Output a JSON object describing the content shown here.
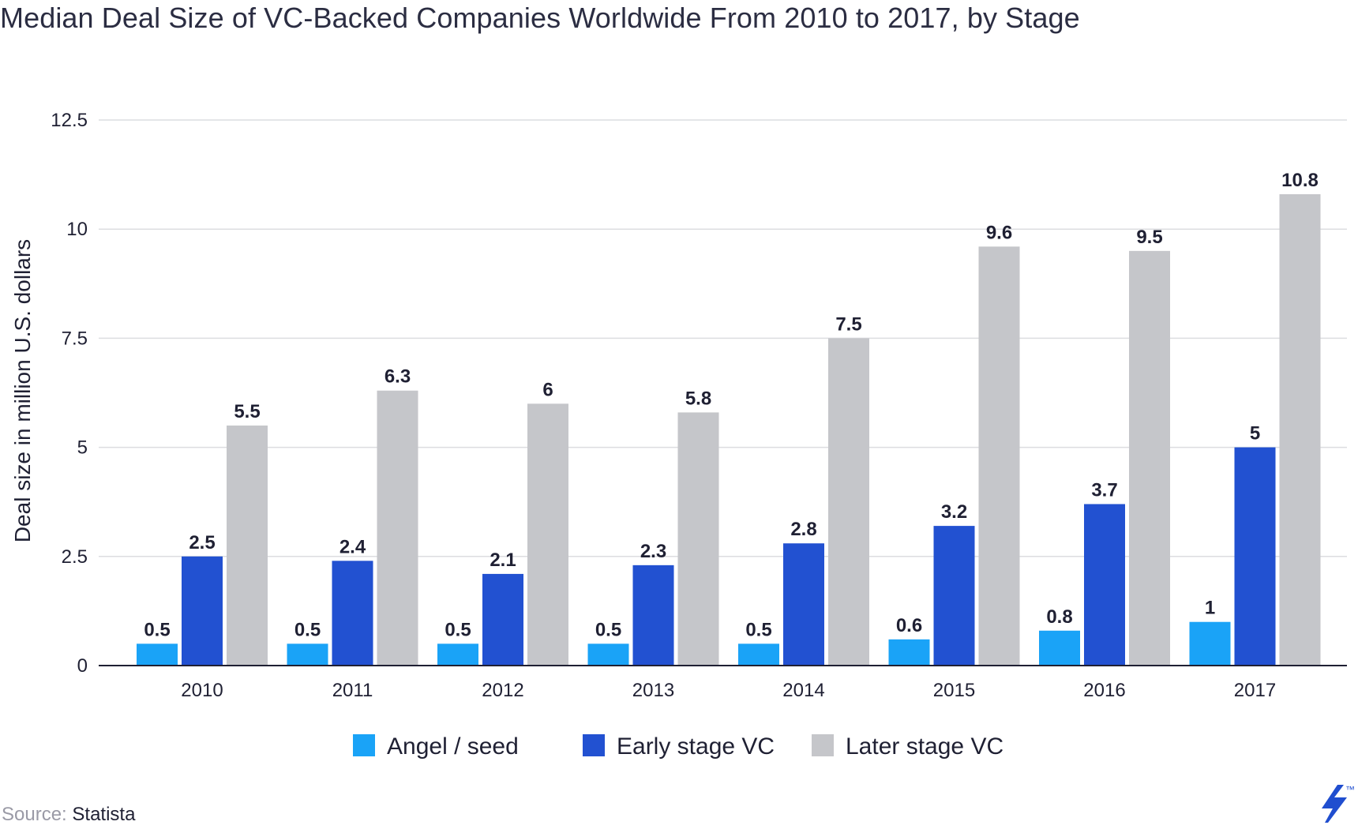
{
  "chart_data": {
    "type": "bar",
    "title": "Median Deal Size of VC-Backed Companies Worldwide From 2010 to 2017, by Stage",
    "xlabel": "",
    "ylabel": "Deal size in million U.S. dollars",
    "categories": [
      "2010",
      "2011",
      "2012",
      "2013",
      "2014",
      "2015",
      "2016",
      "2017"
    ],
    "series": [
      {
        "name": "Angel / seed",
        "color": "#1aa3f7",
        "values": [
          0.5,
          0.5,
          0.5,
          0.5,
          0.5,
          0.6,
          0.8,
          1
        ]
      },
      {
        "name": "Early stage VC",
        "color": "#2251d1",
        "values": [
          2.5,
          2.4,
          2.1,
          2.3,
          2.8,
          3.2,
          3.7,
          5
        ]
      },
      {
        "name": "Later stage VC",
        "color": "#c5c6ca",
        "values": [
          5.5,
          6.3,
          6,
          5.8,
          7.5,
          9.6,
          9.5,
          10.8
        ]
      }
    ],
    "ylim": [
      0,
      12.5
    ],
    "yticks": [
      0,
      2.5,
      5,
      7.5,
      10,
      12.5
    ],
    "ytick_labels": [
      "0",
      "2.5",
      "5",
      "7.5",
      "10",
      "12.5"
    ],
    "grid": true,
    "legend": "bottom-center",
    "data_labels": true
  },
  "source": {
    "label": "Source:",
    "name": "Statista"
  },
  "logo": {
    "icon": "toptal-logo-icon",
    "mark": "™",
    "color": "#204ecf"
  }
}
